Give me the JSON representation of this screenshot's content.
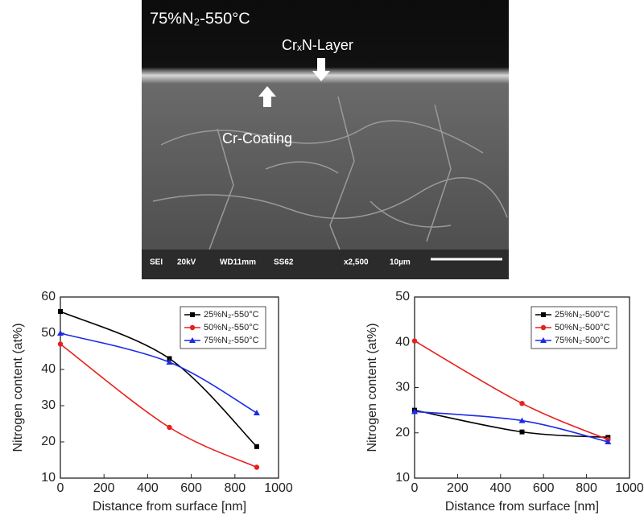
{
  "image": {
    "label": "75%N₂-550°C",
    "layer_label": "CrₓN-Layer",
    "coating_label": "Cr-Coating",
    "info_bar": [
      "SEI",
      "20kV",
      "WD11mm",
      "SS62",
      "x2,500",
      "10µm"
    ]
  },
  "chart_data": [
    {
      "type": "line",
      "x_label": "Distance from surface [nm]",
      "y_label": "Nitrogen content (at%)",
      "x": [
        0,
        500,
        900
      ],
      "xlim": [
        0,
        1000
      ],
      "xticks": [
        0,
        200,
        400,
        600,
        800,
        1000
      ],
      "ylim": [
        10,
        60
      ],
      "yticks": [
        10,
        20,
        30,
        40,
        50,
        60
      ],
      "legend": "upper right",
      "series": [
        {
          "name": "25%N₂-550°C",
          "color": "#000000",
          "marker": "square",
          "values": [
            56,
            43,
            18.7
          ]
        },
        {
          "name": "50%N₂-550°C",
          "color": "#e8201c",
          "marker": "circle",
          "values": [
            47,
            24,
            13
          ]
        },
        {
          "name": "75%N₂-550°C",
          "color": "#1c2be8",
          "marker": "triangle",
          "values": [
            50,
            42,
            28
          ]
        }
      ]
    },
    {
      "type": "line",
      "x_label": "Distance from surface [nm]",
      "y_label": "Nitrogen content (at%)",
      "x": [
        0,
        500,
        900
      ],
      "xlim": [
        0,
        1000
      ],
      "xticks": [
        0,
        200,
        400,
        600,
        800,
        1000
      ],
      "ylim": [
        10,
        50
      ],
      "yticks": [
        10,
        20,
        30,
        40,
        50
      ],
      "legend": "upper right",
      "series": [
        {
          "name": "25%N₂-500°C",
          "color": "#000000",
          "marker": "square",
          "values": [
            25,
            20.2,
            19
          ]
        },
        {
          "name": "50%N₂-500°C",
          "color": "#e8201c",
          "marker": "circle",
          "values": [
            40.3,
            26.5,
            18.5
          ]
        },
        {
          "name": "75%N₂-500°C",
          "color": "#1c2be8",
          "marker": "triangle",
          "values": [
            24.7,
            22.7,
            18
          ]
        }
      ]
    }
  ]
}
